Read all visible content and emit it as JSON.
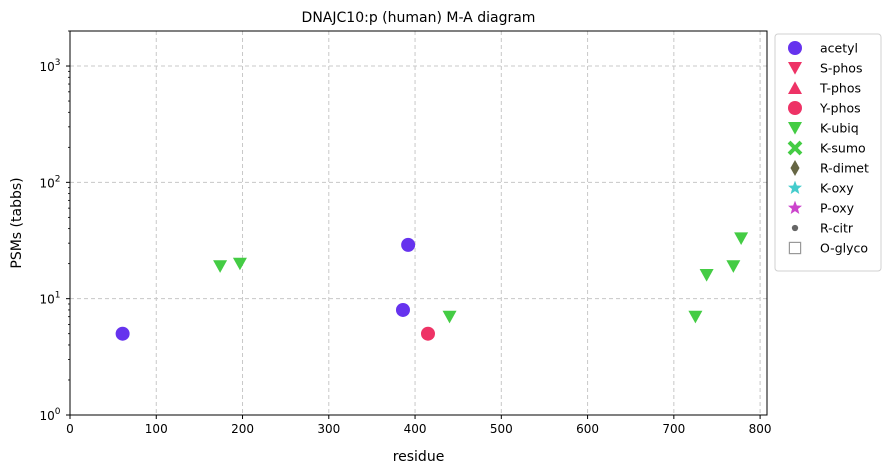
{
  "chart_data": {
    "type": "scatter",
    "title": "DNAJC10:p (human) M-A diagram",
    "xlabel": "residue",
    "ylabel": "PSMs (tabbs)",
    "xlim": [
      0,
      808
    ],
    "ylim": [
      1,
      2000
    ],
    "yscale": "log",
    "x_ticks": [
      0,
      100,
      200,
      300,
      400,
      500,
      600,
      700,
      800
    ],
    "y_ticks": [
      {
        "value": 1,
        "label": "10",
        "exp": "0"
      },
      {
        "value": 10,
        "label": "10",
        "exp": "1"
      },
      {
        "value": 100,
        "label": "10",
        "exp": "2"
      },
      {
        "value": 1000,
        "label": "10",
        "exp": "3"
      }
    ],
    "grid": true,
    "legend_position": "outside-right",
    "series": [
      {
        "name": "acetyl",
        "marker": "circle",
        "color": "#6633ee",
        "points": [
          {
            "x": 61,
            "y": 5
          },
          {
            "x": 386,
            "y": 8
          },
          {
            "x": 392,
            "y": 29
          }
        ]
      },
      {
        "name": "S-phos",
        "marker": "triangle-down",
        "color": "#ee3366",
        "points": []
      },
      {
        "name": "T-phos",
        "marker": "triangle-up",
        "color": "#ee3366",
        "points": []
      },
      {
        "name": "Y-phos",
        "marker": "circle",
        "color": "#ee3366",
        "points": [
          {
            "x": 415,
            "y": 5
          }
        ]
      },
      {
        "name": "K-ubiq",
        "marker": "triangle-down",
        "color": "#44cc44",
        "points": [
          {
            "x": 174,
            "y": 19
          },
          {
            "x": 197,
            "y": 20
          },
          {
            "x": 440,
            "y": 7
          },
          {
            "x": 725,
            "y": 7
          },
          {
            "x": 738,
            "y": 16
          },
          {
            "x": 769,
            "y": 19
          },
          {
            "x": 778,
            "y": 33
          }
        ]
      },
      {
        "name": "K-sumo",
        "marker": "x",
        "color": "#44cc44",
        "points": []
      },
      {
        "name": "R-dimet",
        "marker": "diamond",
        "color": "#666644",
        "points": []
      },
      {
        "name": "K-oxy",
        "marker": "star",
        "color": "#44cccc",
        "points": []
      },
      {
        "name": "P-oxy",
        "marker": "star",
        "color": "#cc44cc",
        "points": []
      },
      {
        "name": "R-citr",
        "marker": "dot",
        "color": "#666666",
        "points": []
      },
      {
        "name": "O-glyco",
        "marker": "square-open",
        "color": "#999999",
        "points": []
      }
    ]
  }
}
